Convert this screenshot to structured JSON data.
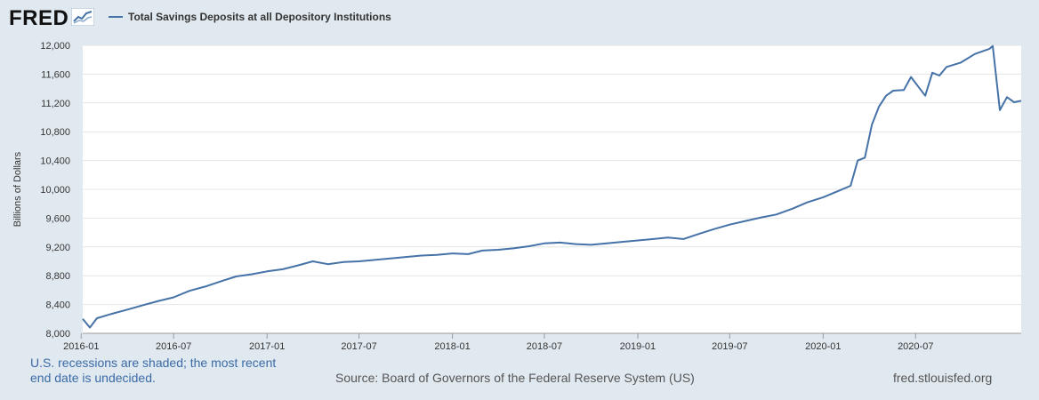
{
  "header": {
    "logo_text": "FRED",
    "logo_icon": "line-chart-icon",
    "legend_label": "Total Savings Deposits at all Depository Institutions",
    "series_color": "#4572a7"
  },
  "footer": {
    "recession_note": "U.S. recessions are shaded; the most recent end date is undecided.",
    "source": "Source: Board of Governors of the Federal Reserve System (US)",
    "site": "fred.stlouisfed.org"
  },
  "chart_data": {
    "type": "line",
    "title": "",
    "xlabel": "",
    "ylabel": "Billions of Dollars",
    "ylim": [
      8000,
      12000
    ],
    "yticks": [
      8000,
      8400,
      8800,
      9200,
      9600,
      10000,
      10400,
      10800,
      11200,
      11600,
      12000
    ],
    "ytick_labels": [
      "8,000",
      "8,400",
      "8,800",
      "9,200",
      "9,600",
      "10,000",
      "10,400",
      "10,800",
      "11,200",
      "11,600",
      "12,000"
    ],
    "xlim": [
      "2016-01-04",
      "2021-01-25"
    ],
    "xtick_labels": [
      "2016-01",
      "2016-07",
      "2017-01",
      "2017-07",
      "2018-01",
      "2018-07",
      "2019-01",
      "2019-07",
      "2020-01",
      "2020-07"
    ],
    "grid": true,
    "series": [
      {
        "name": "Total Savings Deposits at all Depository Institutions",
        "color": "#4572a7",
        "points": [
          [
            "2016-01-04",
            8200
          ],
          [
            "2016-01-18",
            8080
          ],
          [
            "2016-02-01",
            8210
          ],
          [
            "2016-03-01",
            8270
          ],
          [
            "2016-04-01",
            8330
          ],
          [
            "2016-05-01",
            8390
          ],
          [
            "2016-06-01",
            8450
          ],
          [
            "2016-07-01",
            8500
          ],
          [
            "2016-08-01",
            8590
          ],
          [
            "2016-09-01",
            8650
          ],
          [
            "2016-10-01",
            8720
          ],
          [
            "2016-11-01",
            8790
          ],
          [
            "2016-12-01",
            8820
          ],
          [
            "2017-01-01",
            8860
          ],
          [
            "2017-02-01",
            8890
          ],
          [
            "2017-03-01",
            8940
          ],
          [
            "2017-04-01",
            9000
          ],
          [
            "2017-05-01",
            8960
          ],
          [
            "2017-06-01",
            8990
          ],
          [
            "2017-07-01",
            9000
          ],
          [
            "2017-08-01",
            9020
          ],
          [
            "2017-09-01",
            9040
          ],
          [
            "2017-10-01",
            9060
          ],
          [
            "2017-11-01",
            9080
          ],
          [
            "2017-12-01",
            9090
          ],
          [
            "2018-01-01",
            9110
          ],
          [
            "2018-02-01",
            9100
          ],
          [
            "2018-03-01",
            9150
          ],
          [
            "2018-04-01",
            9160
          ],
          [
            "2018-05-01",
            9180
          ],
          [
            "2018-06-01",
            9210
          ],
          [
            "2018-07-01",
            9250
          ],
          [
            "2018-08-01",
            9260
          ],
          [
            "2018-09-01",
            9240
          ],
          [
            "2018-10-01",
            9230
          ],
          [
            "2018-11-01",
            9250
          ],
          [
            "2018-12-01",
            9270
          ],
          [
            "2019-01-01",
            9290
          ],
          [
            "2019-02-01",
            9310
          ],
          [
            "2019-03-01",
            9330
          ],
          [
            "2019-04-01",
            9310
          ],
          [
            "2019-05-01",
            9380
          ],
          [
            "2019-06-01",
            9450
          ],
          [
            "2019-07-01",
            9510
          ],
          [
            "2019-08-01",
            9560
          ],
          [
            "2019-09-01",
            9610
          ],
          [
            "2019-10-01",
            9650
          ],
          [
            "2019-11-01",
            9730
          ],
          [
            "2019-12-01",
            9820
          ],
          [
            "2020-01-01",
            9890
          ],
          [
            "2020-02-01",
            9980
          ],
          [
            "2020-02-24",
            10050
          ],
          [
            "2020-03-09",
            10400
          ],
          [
            "2020-03-23",
            10440
          ],
          [
            "2020-04-06",
            10900
          ],
          [
            "2020-04-20",
            11150
          ],
          [
            "2020-05-04",
            11300
          ],
          [
            "2020-05-18",
            11370
          ],
          [
            "2020-06-08",
            11380
          ],
          [
            "2020-06-22",
            11560
          ],
          [
            "2020-07-06",
            11430
          ],
          [
            "2020-07-20",
            11300
          ],
          [
            "2020-08-03",
            11620
          ],
          [
            "2020-08-17",
            11580
          ],
          [
            "2020-08-31",
            11700
          ],
          [
            "2020-09-28",
            11760
          ],
          [
            "2020-10-26",
            11880
          ],
          [
            "2020-11-23",
            11950
          ],
          [
            "2020-11-30",
            11990
          ],
          [
            "2020-12-14",
            11100
          ],
          [
            "2020-12-28",
            11280
          ],
          [
            "2021-01-11",
            11210
          ],
          [
            "2021-01-25",
            11230
          ]
        ]
      }
    ]
  }
}
